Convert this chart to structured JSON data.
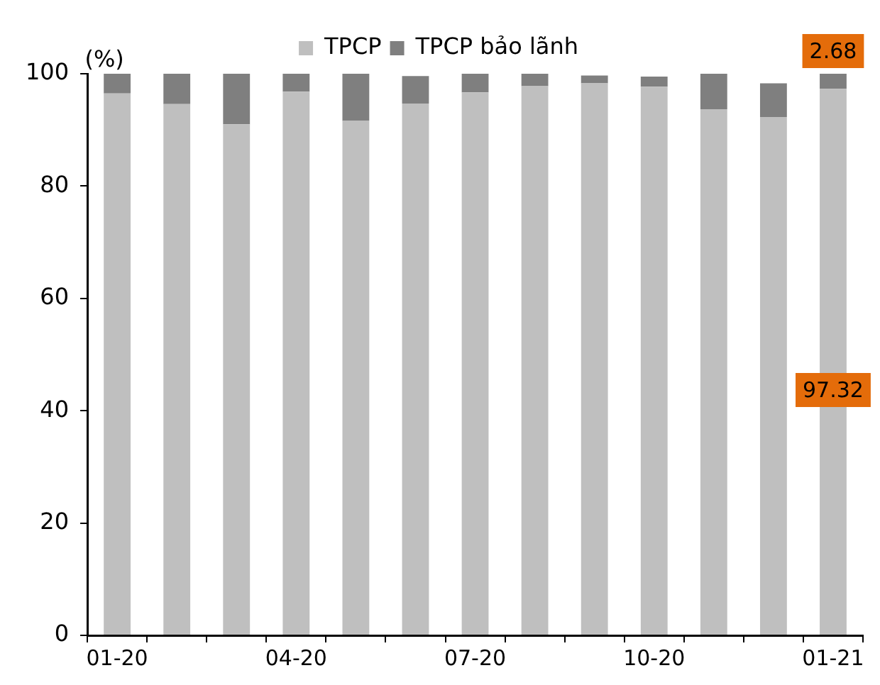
{
  "chart_data": {
    "type": "bar",
    "stacked": true,
    "ylabel": "(%)",
    "categories": [
      "01-20",
      null,
      null,
      "04-20",
      null,
      null,
      "07-20",
      null,
      null,
      "10-20",
      null,
      null,
      "01-21"
    ],
    "series": [
      {
        "name": "TPCP",
        "color": "#bfbfbf",
        "values": [
          96.5,
          94.6,
          91.0,
          96.8,
          91.6,
          94.7,
          96.7,
          97.8,
          98.3,
          97.7,
          93.7,
          92.3,
          97.32
        ],
        "value_labels": [
          null,
          null,
          null,
          null,
          null,
          null,
          null,
          null,
          null,
          null,
          null,
          null,
          "97.32"
        ]
      },
      {
        "name": "TPCP bảo lãnh",
        "color": "#7f7f7f",
        "values": [
          3.5,
          5.4,
          9.0,
          3.2,
          8.4,
          4.9,
          3.3,
          2.2,
          1.4,
          1.8,
          6.3,
          6.0,
          2.68
        ],
        "value_labels": [
          null,
          null,
          null,
          null,
          null,
          null,
          null,
          null,
          null,
          null,
          null,
          null,
          "2.68"
        ]
      }
    ],
    "ylim": [
      0,
      100
    ],
    "yticks": [
      0,
      20,
      40,
      60,
      80,
      100
    ],
    "grid": false,
    "legend": "top"
  }
}
